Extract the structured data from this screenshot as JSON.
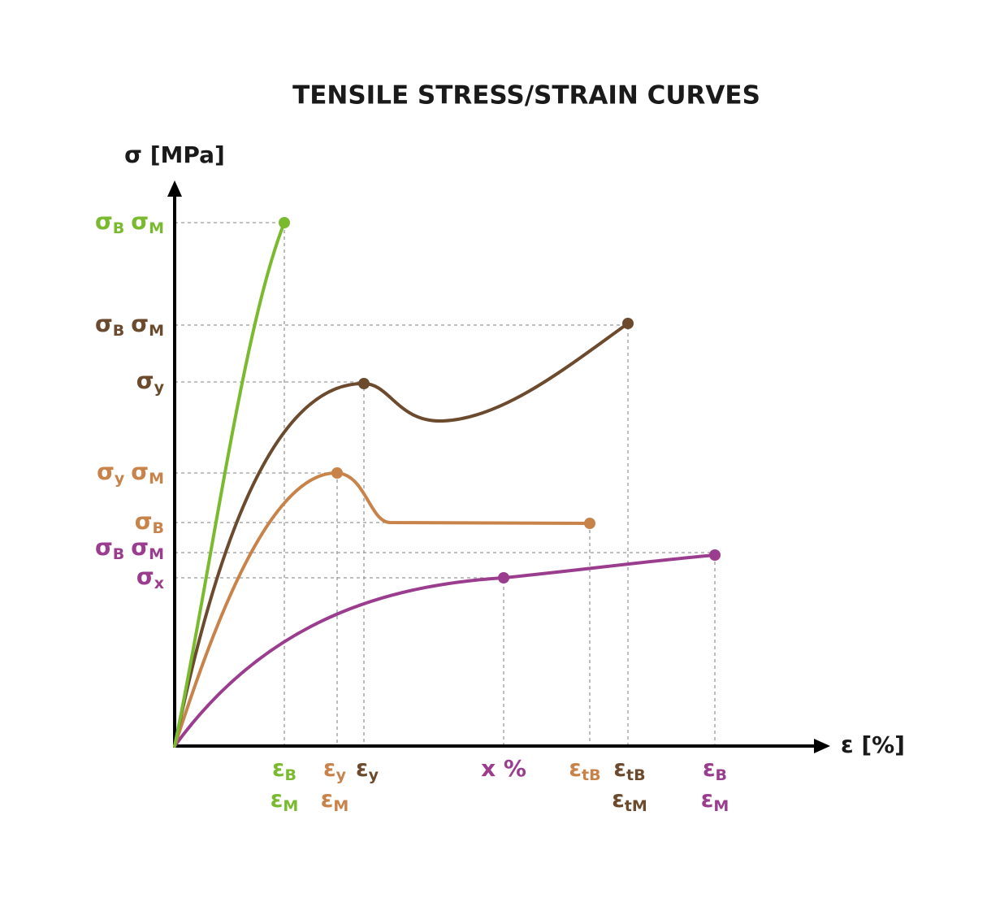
{
  "title": "TENSILE STRESS/STRAIN CURVES",
  "y_axis_label": "σ [MPa]",
  "x_axis_label": "ε [%]",
  "y_labels": [
    {
      "color": "#7aba2f",
      "terms": [
        {
          "symbol": "σ",
          "subscript": "B"
        },
        {
          "symbol": "σ",
          "subscript": "M"
        }
      ]
    },
    {
      "color": "#6b4a2e",
      "terms": [
        {
          "symbol": "σ",
          "subscript": "B"
        },
        {
          "symbol": "σ",
          "subscript": "M"
        }
      ]
    },
    {
      "color": "#6b4a2e",
      "terms": [
        {
          "symbol": "σ",
          "subscript": "y"
        }
      ]
    },
    {
      "color": "#c8834a",
      "terms": [
        {
          "symbol": "σ",
          "subscript": "y"
        },
        {
          "symbol": "σ",
          "subscript": "M"
        }
      ]
    },
    {
      "color": "#c8834a",
      "terms": [
        {
          "symbol": "σ",
          "subscript": "B"
        }
      ]
    },
    {
      "color": "#9b3d8e",
      "terms": [
        {
          "symbol": "σ",
          "subscript": "B"
        },
        {
          "symbol": "σ",
          "subscript": "M"
        }
      ]
    },
    {
      "color": "#9b3d8e",
      "terms": [
        {
          "symbol": "σ",
          "subscript": "x"
        }
      ]
    }
  ],
  "x_labels": [
    {
      "color": "#7aba2f",
      "lines": [
        {
          "symbol": "ε",
          "subscript": "B"
        },
        {
          "symbol": "ε",
          "subscript": "M"
        }
      ]
    },
    {
      "color": "#c8834a",
      "lines": [
        {
          "symbol": "ε",
          "subscript": "y"
        },
        {
          "symbol": "ε",
          "subscript": "M"
        }
      ]
    },
    {
      "color": "#6b4a2e",
      "lines": [
        {
          "symbol": "ε",
          "subscript": "y"
        }
      ]
    },
    {
      "color": "#9b3d8e",
      "lines": [
        {
          "symbol": "x %"
        }
      ]
    },
    {
      "color": "#c8834a",
      "lines": [
        {
          "symbol": "ε",
          "subscript": "tB"
        }
      ]
    },
    {
      "color": "#6b4a2e",
      "lines": [
        {
          "symbol": "ε",
          "subscript": "tB"
        },
        {
          "symbol": "ε",
          "subscript": "tM"
        }
      ]
    },
    {
      "color": "#9b3d8e",
      "lines": [
        {
          "symbol": "ε",
          "subscript": "B"
        },
        {
          "symbol": "ε",
          "subscript": "M"
        }
      ]
    }
  ]
}
